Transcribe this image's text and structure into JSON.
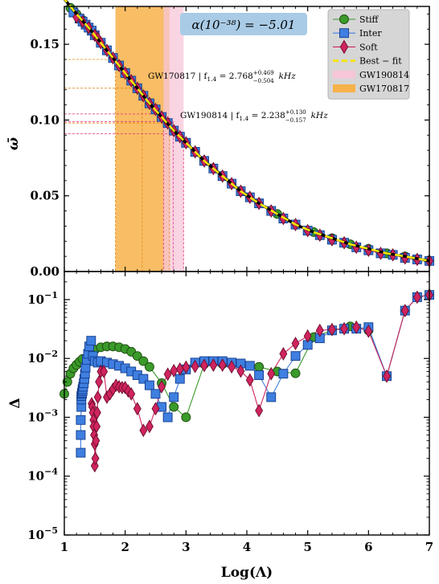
{
  "chart_data": [
    {
      "type": "line",
      "panel": "top",
      "ylabel": "ω̄",
      "xlim": [
        1,
        7
      ],
      "ylim": [
        0,
        0.175
      ],
      "x_ticks": [
        "1",
        "2",
        "3",
        "4",
        "5",
        "6",
        "7"
      ],
      "y_ticks": [
        "0.00",
        "0.05",
        "0.10",
        "0.15"
      ],
      "y_tick_values": [
        0,
        0.05,
        0.1,
        0.15
      ],
      "alpha_box": "α(10⁻³⁸) = −5.01",
      "legend": {
        "position": "top-right",
        "entries": [
          {
            "label": "Stiff",
            "marker": "circle",
            "color": "#3a9a2a"
          },
          {
            "label": "Inter",
            "marker": "square",
            "color": "#3f7fe0"
          },
          {
            "label": "Soft",
            "marker": "diamond",
            "color": "#d0245f"
          },
          {
            "label": "Best − fit",
            "marker": "dashed-line",
            "color": "#f5e600"
          },
          {
            "label": "GW190814",
            "marker": "patch",
            "color": "#f7c6d8"
          },
          {
            "label": "GW170817",
            "marker": "patch",
            "color": "#f7b24a"
          }
        ]
      },
      "bands": [
        {
          "name": "GW170817",
          "x_range": [
            1.84,
            2.73
          ],
          "color": "#f7b24a"
        },
        {
          "name": "GW190814",
          "x_range": [
            2.63,
            2.96
          ],
          "color": "#f7c6d8"
        }
      ],
      "annotations": [
        {
          "id": "gw170817",
          "text": "GW170817 | f",
          "sub": "1.4",
          "mid": " = 2.768",
          "sup": "+0.469",
          "inf": "−0.504",
          "unit": "kHz"
        },
        {
          "id": "gw190814",
          "text": "GW190814 | f",
          "sub": "1.4",
          "mid": " = 2.238",
          "sup": "+0.130",
          "inf": "−0.157",
          "unit": "kHz"
        }
      ],
      "guide_lines": {
        "orange_y": [
          0.14,
          0.121,
          0.098
        ],
        "orange_x": [
          1.84,
          2.28,
          2.73
        ],
        "pink_y": [
          0.104,
          0.099,
          0.091
        ],
        "pink_x": [
          2.63,
          2.79,
          2.96
        ]
      },
      "series": [
        {
          "name": "Stiff",
          "color": "#3a9a2a",
          "x": [
            1.1,
            1.2,
            1.3,
            1.4,
            1.5,
            1.6,
            1.7,
            1.8,
            1.9,
            2.0,
            2.2,
            2.4,
            2.6,
            2.8,
            3.0,
            3.3,
            3.6,
            3.9,
            4.2,
            4.5,
            4.8,
            5.1,
            5.4,
            5.7,
            6.0,
            6.3,
            6.6,
            6.8,
            7.0
          ],
          "y": [
            0.174,
            0.17,
            0.166,
            0.161,
            0.156,
            0.151,
            0.146,
            0.141,
            0.136,
            0.131,
            0.121,
            0.111,
            0.102,
            0.093,
            0.085,
            0.073,
            0.063,
            0.053,
            0.045,
            0.038,
            0.031,
            0.026,
            0.022,
            0.018,
            0.015,
            0.012,
            0.01,
            0.008,
            0.007
          ]
        },
        {
          "name": "Inter",
          "color": "#3f7fe0",
          "x": [
            1.15,
            1.25,
            1.3,
            1.35,
            1.4,
            1.45,
            1.5,
            1.6,
            1.7,
            1.8,
            1.9,
            2.0,
            2.1,
            2.2,
            2.3,
            2.4,
            2.5,
            2.6,
            2.7,
            2.8,
            2.9,
            3.0,
            3.15,
            3.3,
            3.45,
            3.6,
            3.75,
            3.9,
            4.05,
            4.2,
            4.4,
            4.6,
            4.8,
            5.0,
            5.2,
            5.4,
            5.6,
            5.8,
            6.0,
            6.2,
            6.4,
            6.6,
            6.8,
            7.0
          ],
          "y": [
            0.171,
            0.167,
            0.165,
            0.163,
            0.161,
            0.159,
            0.156,
            0.151,
            0.146,
            0.141,
            0.136,
            0.131,
            0.126,
            0.121,
            0.116,
            0.111,
            0.107,
            0.102,
            0.098,
            0.093,
            0.089,
            0.085,
            0.079,
            0.073,
            0.068,
            0.063,
            0.058,
            0.053,
            0.049,
            0.045,
            0.04,
            0.035,
            0.031,
            0.027,
            0.024,
            0.021,
            0.019,
            0.016,
            0.014,
            0.012,
            0.011,
            0.009,
            0.008,
            0.007
          ]
        },
        {
          "name": "Soft",
          "color": "#d0245f",
          "x": [
            1.2,
            1.3,
            1.4,
            1.5,
            1.55,
            1.6,
            1.7,
            1.8,
            1.9,
            2.0,
            2.1,
            2.2,
            2.3,
            2.4,
            2.5,
            2.6,
            2.7,
            2.8,
            2.9,
            3.0,
            3.15,
            3.3,
            3.45,
            3.6,
            3.75,
            3.9,
            4.05,
            4.2,
            4.4,
            4.6,
            4.8,
            5.0,
            5.2,
            5.4,
            5.6,
            5.8,
            6.0,
            6.2,
            6.4,
            6.6,
            6.8,
            7.0
          ],
          "y": [
            0.168,
            0.165,
            0.161,
            0.156,
            0.154,
            0.151,
            0.146,
            0.141,
            0.136,
            0.131,
            0.126,
            0.121,
            0.116,
            0.111,
            0.107,
            0.102,
            0.098,
            0.093,
            0.089,
            0.085,
            0.079,
            0.073,
            0.068,
            0.063,
            0.058,
            0.053,
            0.049,
            0.045,
            0.04,
            0.035,
            0.031,
            0.027,
            0.024,
            0.021,
            0.019,
            0.016,
            0.014,
            0.012,
            0.011,
            0.009,
            0.008,
            0.007
          ]
        }
      ],
      "best_fit": {
        "name": "Best − fit",
        "color": "#f5e600",
        "x": [
          1.0,
          1.2,
          1.4,
          1.6,
          1.8,
          2.0,
          2.2,
          2.4,
          2.6,
          2.8,
          3.0,
          3.3,
          3.6,
          3.9,
          4.2,
          4.5,
          4.8,
          5.1,
          5.4,
          5.7,
          6.0,
          6.3,
          6.6,
          7.0
        ],
        "y": [
          0.18,
          0.17,
          0.161,
          0.151,
          0.141,
          0.131,
          0.121,
          0.111,
          0.102,
          0.093,
          0.085,
          0.073,
          0.063,
          0.053,
          0.045,
          0.038,
          0.031,
          0.026,
          0.022,
          0.018,
          0.015,
          0.012,
          0.01,
          0.007
        ]
      }
    },
    {
      "type": "line",
      "panel": "bottom",
      "xlabel": "Log(Λ)",
      "ylabel": "Δ",
      "xlim": [
        1,
        7
      ],
      "ylim": [
        1e-05,
        0.3
      ],
      "yscale": "log",
      "x_ticks": [
        "1",
        "2",
        "3",
        "4",
        "5",
        "6",
        "7"
      ],
      "y_ticks": [
        {
          "base": "10",
          "exp": "−1",
          "value": 0.1
        },
        {
          "base": "10",
          "exp": "−2",
          "value": 0.01
        },
        {
          "base": "10",
          "exp": "−3",
          "value": 0.001
        },
        {
          "base": "10",
          "exp": "−4",
          "value": 0.0001
        },
        {
          "base": "10",
          "exp": "−5",
          "value": 1e-05
        }
      ],
      "series": [
        {
          "name": "Stiff",
          "color": "#3a9a2a",
          "x": [
            1.0,
            1.05,
            1.1,
            1.15,
            1.2,
            1.25,
            1.3,
            1.4,
            1.5,
            1.6,
            1.7,
            1.8,
            1.9,
            2.0,
            2.1,
            2.2,
            2.3,
            2.4,
            2.6,
            2.8,
            3.0,
            3.3,
            3.6,
            3.9,
            4.2,
            4.5,
            4.8,
            5.1,
            5.4,
            5.7,
            6.0,
            6.3,
            6.6,
            6.8,
            7.0
          ],
          "y": [
            0.0025,
            0.004,
            0.0055,
            0.0068,
            0.0078,
            0.0088,
            0.0098,
            0.012,
            0.014,
            0.0155,
            0.016,
            0.016,
            0.0155,
            0.0145,
            0.013,
            0.011,
            0.009,
            0.0072,
            0.0038,
            0.0015,
            0.001,
            0.008,
            0.008,
            0.008,
            0.0072,
            0.006,
            0.0056,
            0.023,
            0.03,
            0.035,
            0.03,
            0.005,
            0.065,
            0.11,
            0.12
          ]
        },
        {
          "name": "Inter",
          "color": "#3f7fe0",
          "x": [
            1.27,
            1.27,
            1.27,
            1.28,
            1.28,
            1.28,
            1.29,
            1.29,
            1.3,
            1.3,
            1.31,
            1.32,
            1.33,
            1.34,
            1.35,
            1.37,
            1.39,
            1.41,
            1.44,
            1.47,
            1.5,
            1.55,
            1.6,
            1.7,
            1.8,
            1.9,
            2.0,
            2.1,
            2.2,
            2.3,
            2.4,
            2.5,
            2.6,
            2.7,
            2.8,
            2.9,
            3.0,
            3.15,
            3.3,
            3.45,
            3.6,
            3.75,
            3.9,
            4.05,
            4.2,
            4.4,
            4.6,
            4.8,
            5.0,
            5.2,
            5.4,
            5.6,
            5.8,
            6.0,
            6.3,
            6.6,
            6.8,
            7.0
          ],
          "y": [
            0.00025,
            0.0005,
            0.0009,
            0.0015,
            0.002,
            0.0023,
            0.0025,
            0.0026,
            0.0028,
            0.003,
            0.0033,
            0.0038,
            0.0045,
            0.0055,
            0.007,
            0.0095,
            0.012,
            0.016,
            0.02,
            0.011,
            0.009,
            0.0085,
            0.009,
            0.0085,
            0.008,
            0.0075,
            0.0068,
            0.006,
            0.0052,
            0.0045,
            0.0035,
            0.0025,
            0.0015,
            0.001,
            0.0022,
            0.0045,
            0.0065,
            0.0085,
            0.009,
            0.009,
            0.009,
            0.0085,
            0.0082,
            0.0075,
            0.0052,
            0.0022,
            0.0055,
            0.011,
            0.017,
            0.022,
            0.03,
            0.032,
            0.032,
            0.034,
            0.005,
            0.065,
            0.11,
            0.12
          ]
        },
        {
          "name": "Soft",
          "color": "#d0245f",
          "x": [
            1.45,
            1.46,
            1.47,
            1.48,
            1.48,
            1.49,
            1.5,
            1.5,
            1.51,
            1.52,
            1.53,
            1.54,
            1.55,
            1.57,
            1.6,
            1.65,
            1.7,
            1.75,
            1.8,
            1.85,
            1.9,
            1.95,
            2.0,
            2.05,
            2.1,
            2.2,
            2.3,
            2.4,
            2.5,
            2.6,
            2.7,
            2.8,
            2.9,
            3.0,
            3.15,
            3.3,
            3.45,
            3.6,
            3.75,
            3.9,
            4.05,
            4.2,
            4.4,
            4.6,
            4.8,
            5.0,
            5.2,
            5.4,
            5.6,
            5.8,
            6.0,
            6.3,
            6.6,
            6.8,
            7.0
          ],
          "y": [
            0.0017,
            0.0015,
            0.0012,
            0.0009,
            0.0007,
            0.0005,
            0.00035,
            0.00015,
            0.0002,
            0.0004,
            0.0007,
            0.0012,
            0.0022,
            0.004,
            0.006,
            0.006,
            0.0022,
            0.0025,
            0.003,
            0.0035,
            0.0033,
            0.0032,
            0.0032,
            0.0028,
            0.0025,
            0.0014,
            0.0006,
            0.0007,
            0.0014,
            0.0033,
            0.0054,
            0.0062,
            0.0066,
            0.0071,
            0.0073,
            0.0076,
            0.0077,
            0.0077,
            0.0072,
            0.0061,
            0.0043,
            0.0013,
            0.0055,
            0.012,
            0.018,
            0.024,
            0.03,
            0.031,
            0.032,
            0.034,
            0.029,
            0.005,
            0.065,
            0.11,
            0.12
          ]
        }
      ]
    }
  ]
}
